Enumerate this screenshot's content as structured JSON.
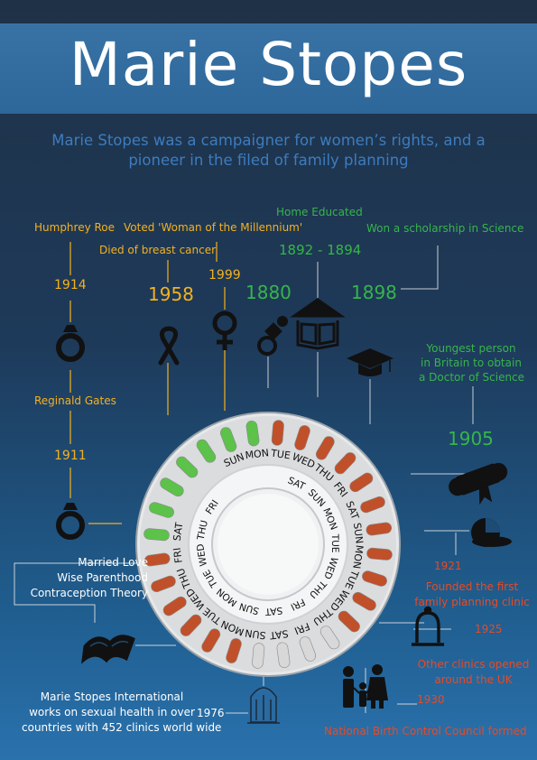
{
  "title": "Marie Stopes",
  "subtitle": "Marie Stopes was a campaigner for women’s rights, and a pioneer in the filed of family planning",
  "timeline": {
    "humphrey_roe": "Humphrey Roe",
    "voted": "Voted 'Woman of the Millennium'",
    "died": "Died of breast cancer",
    "home_educated": "Home Educated",
    "years_1892_1894": "1892 - 1894",
    "scholarship": "Won a scholarship in Science",
    "y1914": "1914",
    "y1958": "1958",
    "y1999": "1999",
    "y1880": "1880",
    "y1898": "1898",
    "reginald_gates": "Reginald Gates",
    "y1911": "1911",
    "youngest": [
      "Youngest person",
      "in Britain to obtain",
      "a Doctor of Science"
    ],
    "y1905": "1905",
    "books": [
      "Married Love",
      "Wise Parenthood",
      "Contraception Theory"
    ],
    "y1921": "1921",
    "founded": [
      "Founded the first",
      "family planning clinic"
    ],
    "y1925": "1925",
    "other_clinics": [
      "Other clinics opened",
      "around the UK"
    ],
    "y1930": "1930",
    "national": "National Birth Control Council formed",
    "msi": [
      "Marie Stopes International",
      "works on sexual health in over",
      "countries with  452 clinics world wide"
    ],
    "y1976": "1976"
  },
  "pill_pack": {
    "outer_days": [
      "SUN",
      "MON",
      "TUE",
      "WED",
      "THU",
      "FRI",
      "SAT",
      "SUN",
      "MON",
      "TUE",
      "WED",
      "THU",
      "FRI",
      "SAT",
      "SUN",
      "MON",
      "TUE",
      "WED",
      "THU",
      "FRI",
      "SAT"
    ],
    "inner_days": [
      "SAT",
      "SUN",
      "MON",
      "TUE",
      "WED",
      "THU",
      "FRI",
      "SAT",
      "SUN",
      "MON",
      "TUE",
      "WED",
      "THU",
      "FRI"
    ]
  },
  "colors": {
    "yellow": "#f4b11f",
    "green": "#36b54a",
    "red": "#e84a25",
    "pill_orange": "#c0502a",
    "pill_green": "#5cc24a",
    "pill_white": "#d8d8d8"
  }
}
